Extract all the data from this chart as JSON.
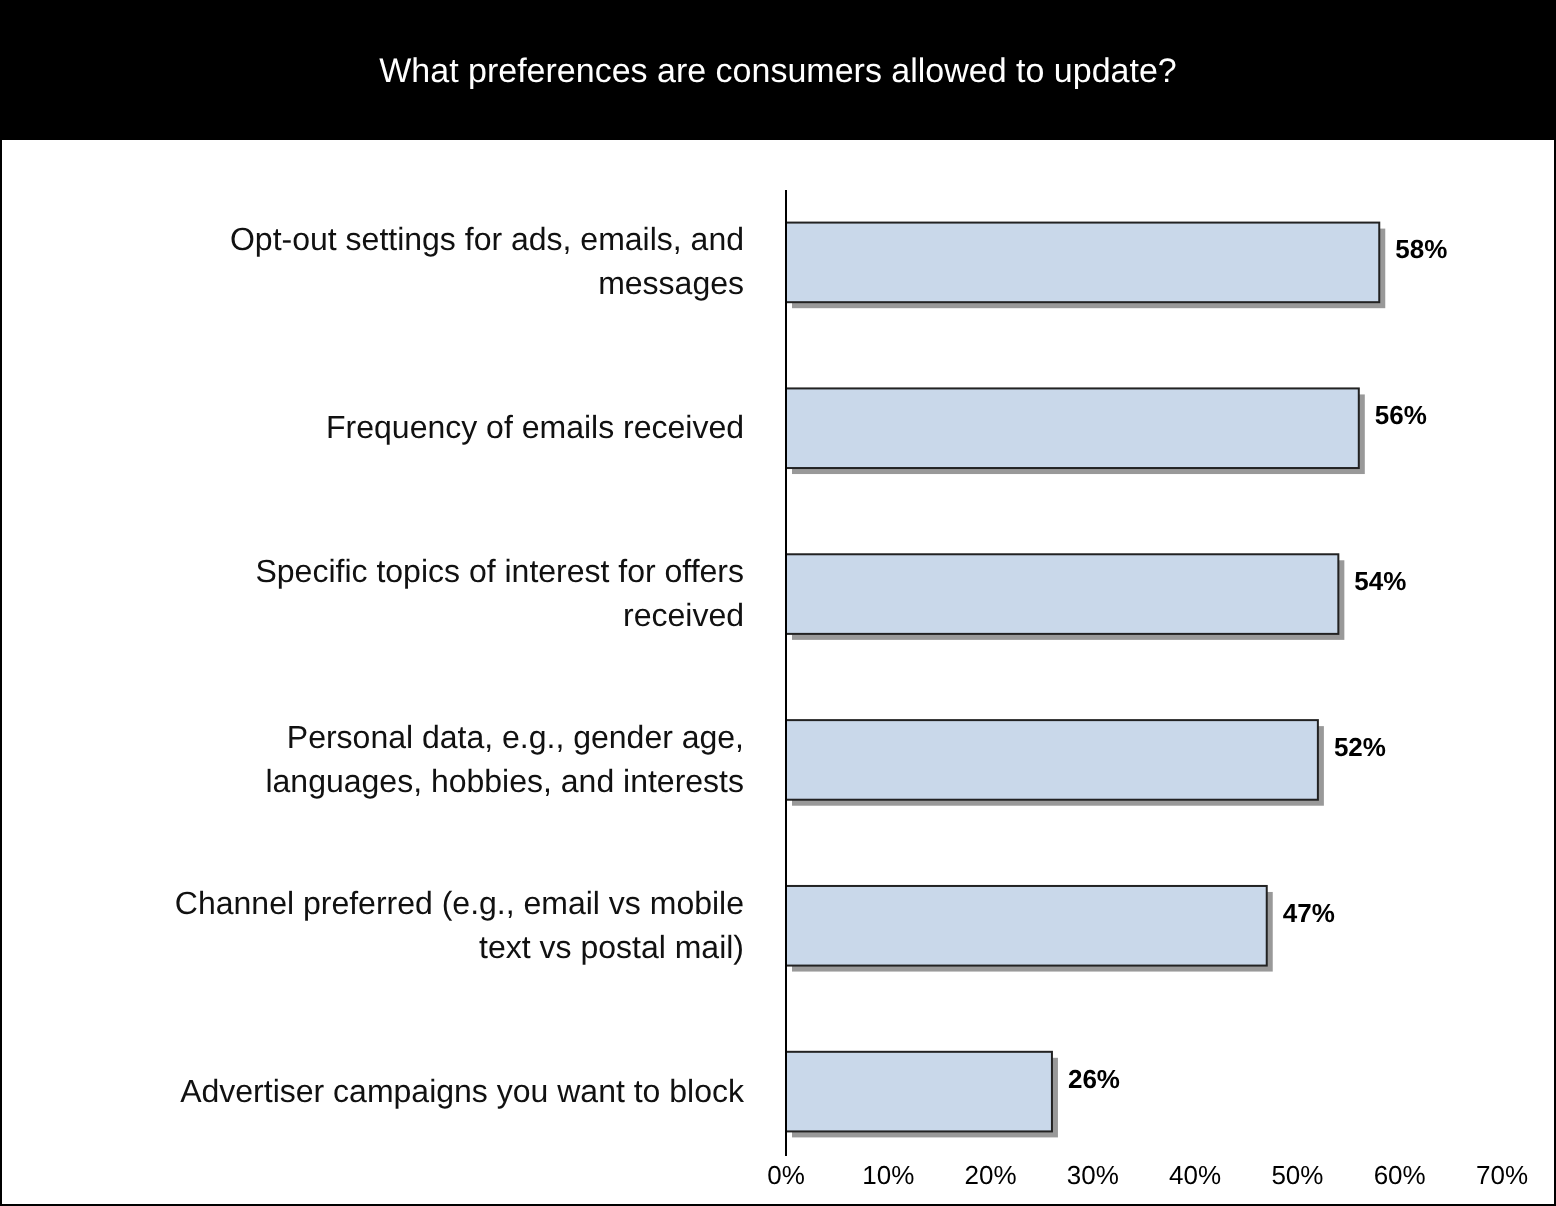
{
  "chart_data": {
    "type": "bar",
    "orientation": "horizontal",
    "title": "What preferences are consumers allowed to update?",
    "categories": [
      "Opt-out settings for ads, emails, and messages",
      "Frequency of emails received",
      "Specific topics of interest for offers received",
      "Personal data, e.g., gender age, languages, hobbies, and interests",
      "Channel preferred (e.g., email vs mobile text vs postal mail)",
      "Advertiser campaigns you want to block"
    ],
    "values": [
      58,
      56,
      54,
      52,
      47,
      26
    ],
    "value_labels": [
      "58%",
      "56%",
      "54%",
      "52%",
      "47%",
      "26%"
    ],
    "color": "#c9d8ea",
    "xlim": [
      0,
      70
    ],
    "xticks": [
      {
        "value": 0,
        "label": "0%"
      },
      {
        "value": 10,
        "label": "10%"
      },
      {
        "value": 20,
        "label": "20%"
      },
      {
        "value": 30,
        "label": "30%"
      },
      {
        "value": 40,
        "label": "40%"
      },
      {
        "value": 50,
        "label": "50%"
      },
      {
        "value": 60,
        "label": "60%"
      },
      {
        "value": 70,
        "label": "70%"
      }
    ],
    "grid": false
  }
}
